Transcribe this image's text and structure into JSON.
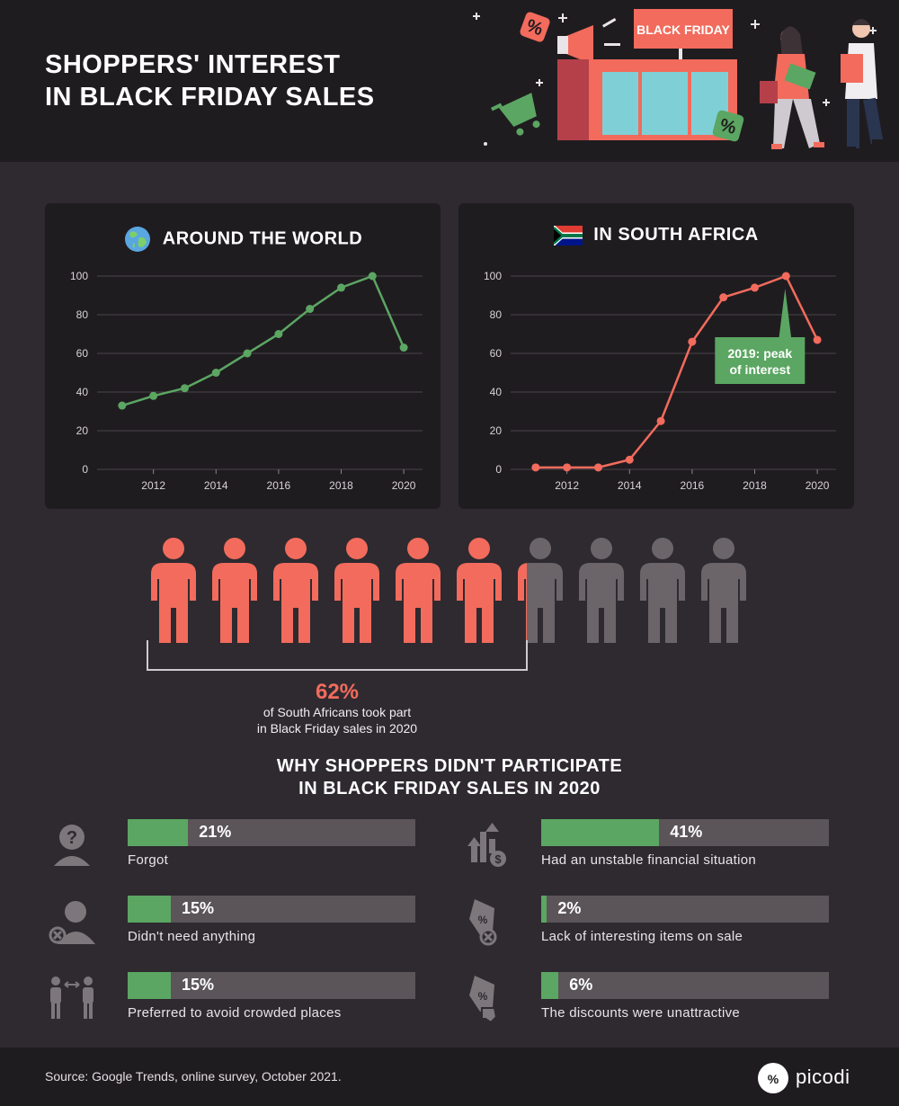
{
  "header": {
    "title_line1": "SHOPPERS' INTEREST",
    "title_line2": "IN BLACK FRIDAY SALES",
    "store_sign": "BLACK FRIDAY"
  },
  "colors": {
    "green": "#5ba662",
    "red": "#f26b5c",
    "gray": "#5b5559",
    "panel": "#1f1c20",
    "background": "#2e2a30"
  },
  "chart_data": [
    {
      "type": "line",
      "title": "AROUND THE WORLD",
      "icon": "globe-icon",
      "x": [
        2011,
        2012,
        2013,
        2014,
        2015,
        2016,
        2017,
        2018,
        2019,
        2020
      ],
      "series": [
        {
          "values": [
            33,
            38,
            42,
            50,
            60,
            70,
            83,
            94,
            100,
            63
          ],
          "color": "#5ba662"
        }
      ],
      "xticks": [
        "2012",
        "2014",
        "2016",
        "2018",
        "2020"
      ],
      "yticks": [
        "0",
        "20",
        "40",
        "60",
        "80",
        "100"
      ],
      "xlim": [
        2010.2,
        2020.6
      ],
      "ylim": [
        0,
        100
      ],
      "grid": true
    },
    {
      "type": "line",
      "title": "IN SOUTH AFRICA",
      "icon": "south-africa-flag-icon",
      "x": [
        2011,
        2012,
        2013,
        2014,
        2015,
        2016,
        2017,
        2018,
        2019,
        2020
      ],
      "series": [
        {
          "values": [
            1,
            1,
            1,
            5,
            25,
            66,
            89,
            94,
            100,
            67
          ],
          "color": "#f26b5c"
        }
      ],
      "xticks": [
        "2012",
        "2014",
        "2016",
        "2018",
        "2020"
      ],
      "yticks": [
        "0",
        "20",
        "40",
        "60",
        "80",
        "100"
      ],
      "xlim": [
        2010.2,
        2020.6
      ],
      "ylim": [
        0,
        100
      ],
      "grid": true,
      "annotation": {
        "line1": "2019: peak",
        "line2": "of interest",
        "x": 2019,
        "y": 100
      }
    }
  ],
  "participation": {
    "percent": "62%",
    "desc_line1": "of South Africans took part",
    "desc_line2": "in Black Friday sales in 2020",
    "people_total": 10,
    "people_highlighted": 6.2
  },
  "why": {
    "title_line1": "WHY SHOPPERS DIDN'T PARTICIPATE",
    "title_line2": "IN BLACK FRIDAY SALES IN 2020",
    "reasons": [
      {
        "pct": "21%",
        "value": 21,
        "label": "Forgot",
        "icon": "question-head-icon"
      },
      {
        "pct": "41%",
        "value": 41,
        "label": "Had an unstable financial situation",
        "icon": "financial-chart-icon"
      },
      {
        "pct": "15%",
        "value": 15,
        "label": "Didn't need anything",
        "icon": "person-x-icon"
      },
      {
        "pct": "2%",
        "value": 2,
        "label": "Lack of interesting items on sale",
        "icon": "tag-x-icon"
      },
      {
        "pct": "15%",
        "value": 15,
        "label": "Preferred to avoid crowded places",
        "icon": "people-distance-icon"
      },
      {
        "pct": "6%",
        "value": 6,
        "label": "The discounts were unattractive",
        "icon": "tag-thumbs-down-icon"
      }
    ]
  },
  "footer": {
    "source": "Source: Google Trends, online survey, October 2021.",
    "brand": "picodi"
  }
}
